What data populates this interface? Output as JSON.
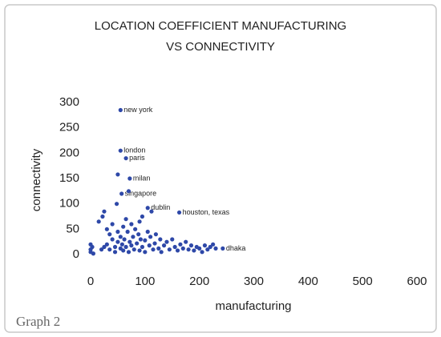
{
  "chart_data": {
    "type": "scatter",
    "title": "LOCATION COEFFICIENT MANUFACTURING",
    "subtitle": "VS CONNECTIVITY",
    "x_label": "manufacturing",
    "y_label": "connectivity",
    "caption": "Graph 2",
    "color": "#2e48a8",
    "xlim": [
      0,
      600
    ],
    "xticks": [
      0,
      100,
      200,
      300,
      400,
      500,
      600
    ],
    "ylim": [
      0,
      300
    ],
    "yticks": [
      0,
      50,
      100,
      150,
      200,
      250,
      300
    ],
    "grid": false,
    "x": [
      55,
      55,
      65,
      72,
      57,
      105,
      163,
      243,
      0,
      0,
      0,
      3,
      5,
      15,
      20,
      22,
      25,
      25,
      30,
      30,
      35,
      35,
      40,
      40,
      45,
      45,
      48,
      50,
      50,
      50,
      55,
      55,
      58,
      60,
      60,
      62,
      65,
      65,
      68,
      70,
      70,
      72,
      75,
      75,
      78,
      80,
      82,
      85,
      88,
      90,
      90,
      92,
      95,
      95,
      100,
      100,
      105,
      108,
      110,
      112,
      115,
      118,
      120,
      125,
      128,
      130,
      135,
      140,
      145,
      150,
      155,
      160,
      165,
      170,
      175,
      180,
      185,
      190,
      195,
      200,
      205,
      210,
      215,
      220,
      225,
      230
    ],
    "values": [
      285,
      205,
      190,
      150,
      120,
      92,
      83,
      12,
      20,
      10,
      5,
      15,
      2,
      65,
      10,
      75,
      85,
      15,
      50,
      20,
      10,
      40,
      60,
      30,
      15,
      5,
      100,
      45,
      25,
      158,
      12,
      35,
      20,
      55,
      8,
      30,
      70,
      15,
      45,
      5,
      125,
      25,
      60,
      18,
      35,
      10,
      50,
      22,
      40,
      8,
      65,
      30,
      15,
      75,
      28,
      5,
      45,
      18,
      35,
      85,
      10,
      22,
      40,
      12,
      30,
      5,
      18,
      25,
      10,
      30,
      15,
      8,
      20,
      12,
      25,
      10,
      18,
      8,
      15,
      12,
      5,
      18,
      10,
      15,
      20,
      12
    ],
    "labels": [
      "new york",
      "london",
      "paris",
      "milan",
      "singapore",
      "dublin",
      "houston, texas",
      "dhaka",
      null,
      null,
      null,
      null,
      null,
      null,
      null,
      null,
      null,
      null,
      null,
      null,
      null,
      null,
      null,
      null,
      null,
      null,
      null,
      null,
      null,
      null,
      null,
      null,
      null,
      null,
      null,
      null,
      null,
      null,
      null,
      null,
      null,
      null,
      null,
      null,
      null,
      null,
      null,
      null,
      null,
      null,
      null,
      null,
      null,
      null,
      null,
      null,
      null,
      null,
      null,
      null,
      null,
      null,
      null,
      null,
      null,
      null,
      null,
      null,
      null,
      null,
      null,
      null,
      null,
      null,
      null,
      null,
      null,
      null,
      null,
      null,
      null,
      null,
      null,
      null,
      null,
      null
    ]
  }
}
